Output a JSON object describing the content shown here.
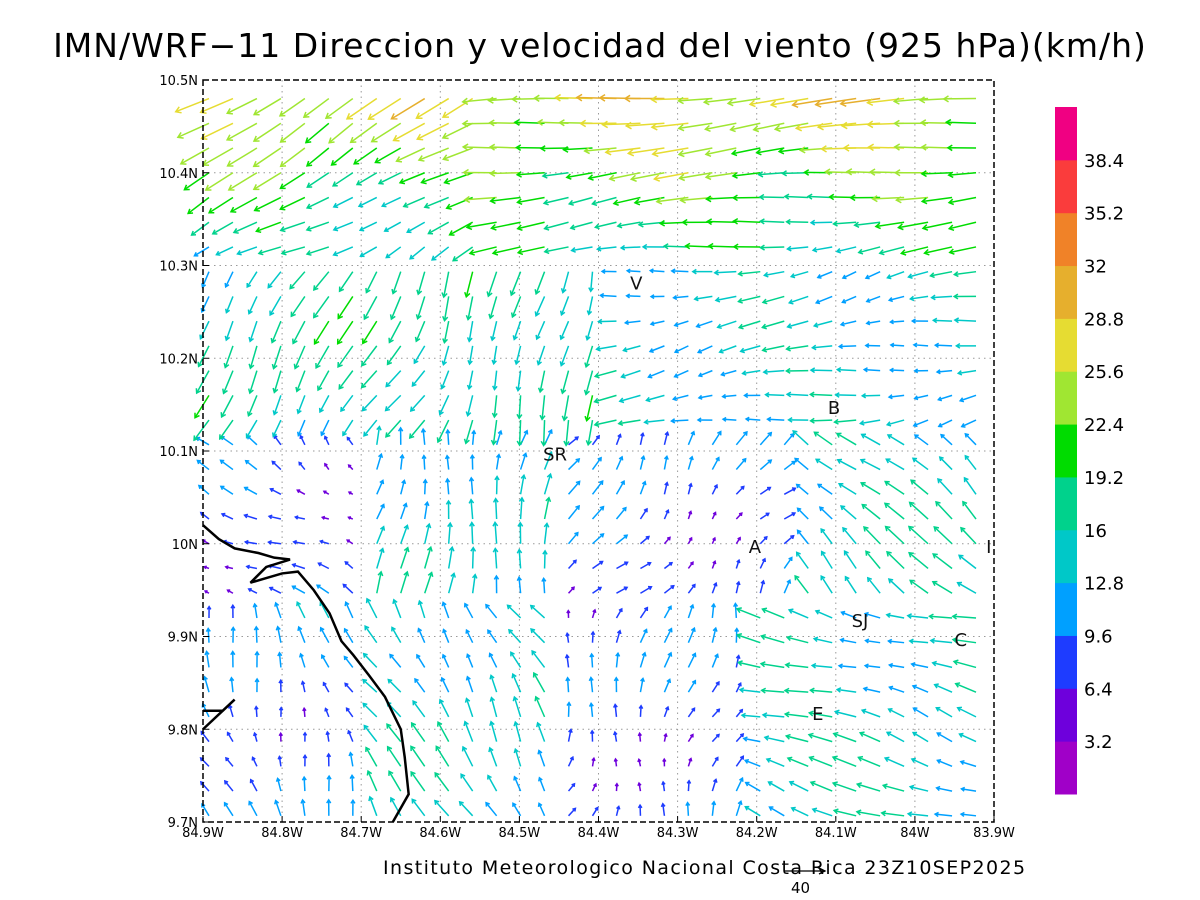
{
  "title": "IMN/WRF−11 Direccion y velocidad del viento (925 hPa)(km/h)",
  "footer": "Instituto Meteorologico Nacional Costa Rica 23Z10SEP2025",
  "reference_vector": {
    "label": "40",
    "magnitude": 40
  },
  "axes": {
    "lon_ticks": [
      "84.9W",
      "84.8W",
      "84.7W",
      "84.6W",
      "84.5W",
      "84.4W",
      "84.3W",
      "84.2W",
      "84.1W",
      "84W",
      "83.9W"
    ],
    "lat_ticks": [
      "9.7N",
      "9.8N",
      "9.9N",
      "10N",
      "10.1N",
      "10.2N",
      "10.3N",
      "10.4N",
      "10.5N"
    ],
    "lon_range": [
      -84.9,
      -83.9
    ],
    "lat_range": [
      9.7,
      10.5
    ],
    "grid": true
  },
  "colorbar": {
    "labels": [
      "3.2",
      "6.4",
      "9.6",
      "12.8",
      "16",
      "19.2",
      "22.4",
      "25.6",
      "28.8",
      "32",
      "35.2",
      "38.4"
    ],
    "colors": [
      "#a000c8",
      "#6e00dc",
      "#1e3cff",
      "#00a0ff",
      "#00c8c8",
      "#00d28c",
      "#00dc00",
      "#a0e632",
      "#e6dc32",
      "#e6af2d",
      "#f08228",
      "#fa3c3c",
      "#f00082"
    ]
  },
  "places": [
    {
      "label": "V",
      "lon": -84.36,
      "lat": 10.274
    },
    {
      "label": "B",
      "lon": -84.11,
      "lat": 10.14
    },
    {
      "label": "SR",
      "lon": -84.47,
      "lat": 10.09
    },
    {
      "label": "A",
      "lon": -84.21,
      "lat": 9.99
    },
    {
      "label": "I",
      "lon": -83.91,
      "lat": 9.99
    },
    {
      "label": "SJ",
      "lon": -84.08,
      "lat": 9.91
    },
    {
      "label": "C",
      "lon": -83.95,
      "lat": 9.89
    },
    {
      "label": "E",
      "lon": -84.13,
      "lat": 9.81
    }
  ],
  "coastline": [
    [
      [
        -84.9,
        10.02
      ],
      [
        -84.88,
        10.005
      ],
      [
        -84.86,
        9.995
      ],
      [
        -84.83,
        9.99
      ],
      [
        -84.81,
        9.985
      ],
      [
        -84.79,
        9.983
      ],
      [
        -84.82,
        9.975
      ],
      [
        -84.84,
        9.958
      ],
      [
        -84.82,
        9.963
      ],
      [
        -84.8,
        9.968
      ],
      [
        -84.78,
        9.97
      ],
      [
        -84.76,
        9.95
      ],
      [
        -84.74,
        9.925
      ],
      [
        -84.725,
        9.895
      ],
      [
        -84.71,
        9.88
      ],
      [
        -84.69,
        9.858
      ],
      [
        -84.67,
        9.835
      ],
      [
        -84.65,
        9.8
      ],
      [
        -84.645,
        9.77
      ],
      [
        -84.64,
        9.73
      ],
      [
        -84.66,
        9.7
      ]
    ],
    [
      [
        -84.9,
        9.82
      ],
      [
        -84.875,
        9.82
      ],
      [
        -84.86,
        9.832
      ],
      [
        -84.9,
        9.8
      ]
    ]
  ]
}
